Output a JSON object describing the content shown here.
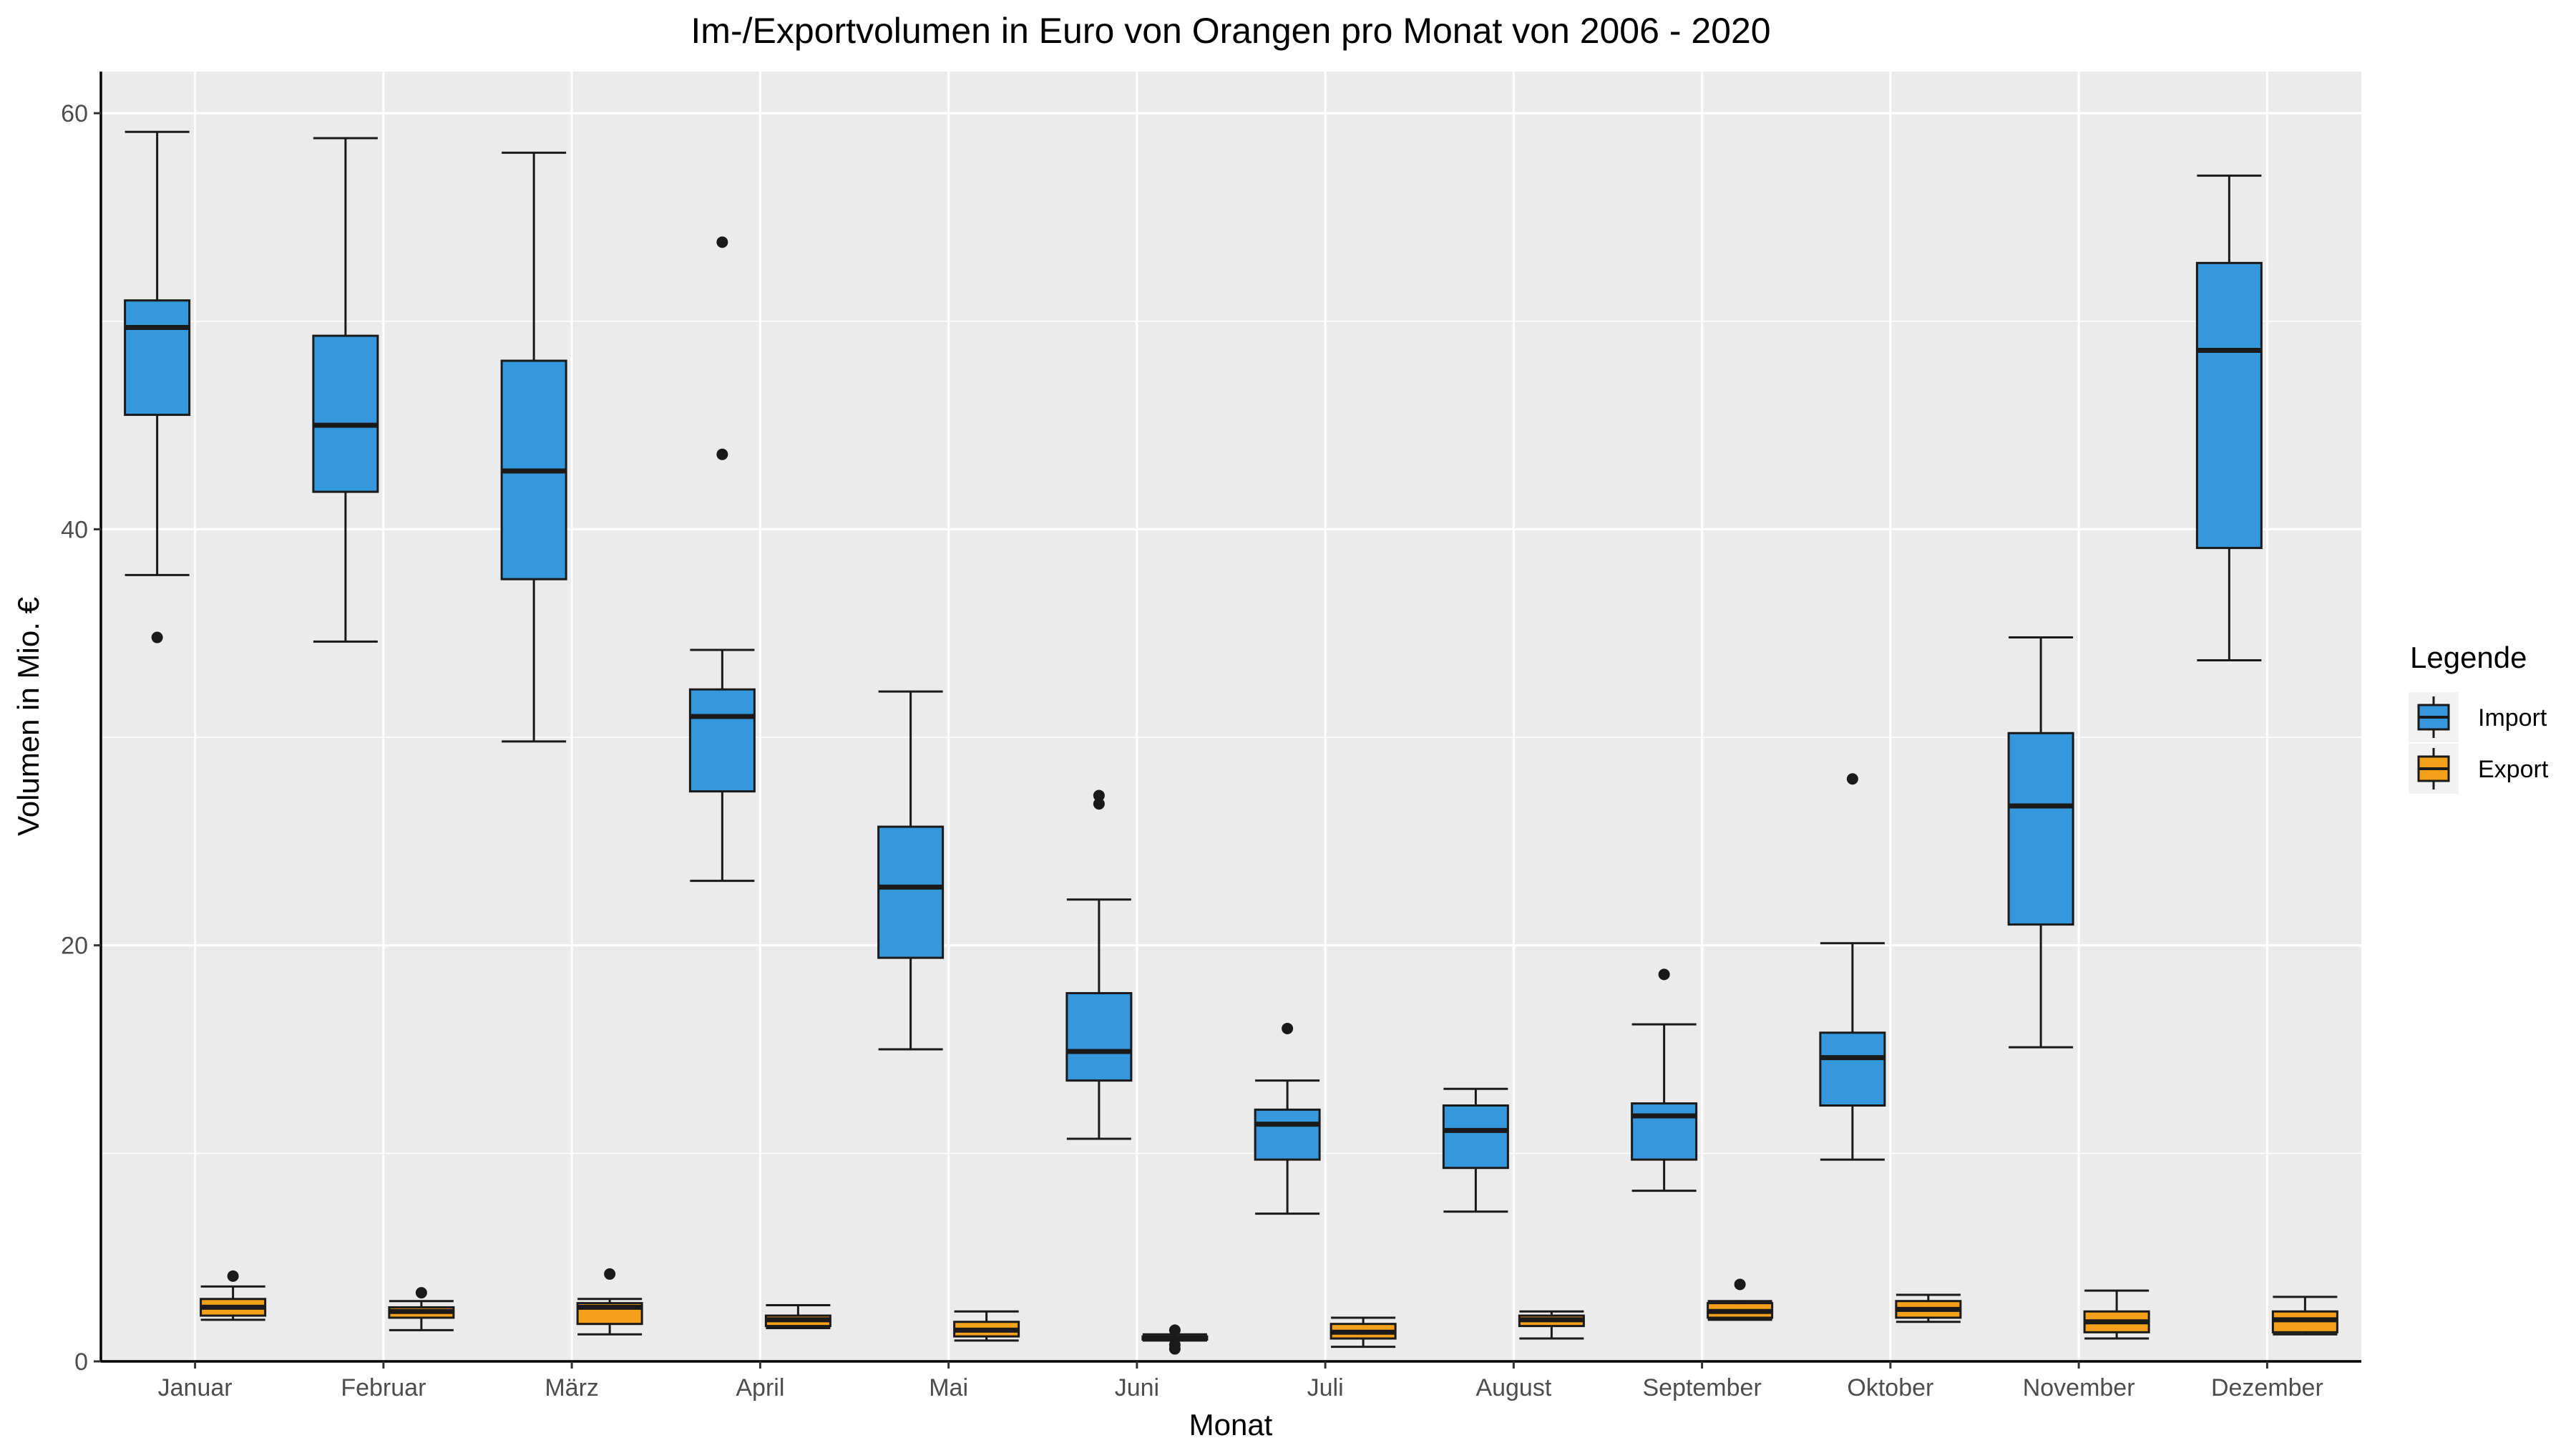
{
  "chart_data": {
    "type": "box",
    "title": "Im-/Exportvolumen in Euro von Orangen pro Monat von 2006 - 2020",
    "xlabel": "Monat",
    "ylabel": "Volumen in Mio. €",
    "ylim": [
      0,
      62
    ],
    "yticks": [
      0,
      20,
      40,
      60
    ],
    "grid": true,
    "legend_position": "right",
    "categories": [
      "Januar",
      "Februar",
      "März",
      "April",
      "Mai",
      "Juni",
      "Juli",
      "August",
      "September",
      "Oktober",
      "November",
      "Dezember"
    ],
    "legend": {
      "title": "Legende",
      "items": [
        {
          "label": "Import",
          "color": "#3598dc"
        },
        {
          "label": "Export",
          "color": "#f5a01a"
        }
      ]
    },
    "series": [
      {
        "name": "Import",
        "color": "#3598dc",
        "boxes": [
          {
            "whisker_low": 37.8,
            "q1": 45.5,
            "median": 49.7,
            "q3": 51.0,
            "whisker_high": 59.1,
            "outliers": [
              34.8
            ]
          },
          {
            "whisker_low": 34.6,
            "q1": 41.8,
            "median": 45.0,
            "q3": 49.3,
            "whisker_high": 58.8,
            "outliers": []
          },
          {
            "whisker_low": 29.8,
            "q1": 37.6,
            "median": 42.8,
            "q3": 48.1,
            "whisker_high": 58.1,
            "outliers": []
          },
          {
            "whisker_low": 23.1,
            "q1": 27.4,
            "median": 31.0,
            "q3": 32.3,
            "whisker_high": 34.2,
            "outliers": [
              43.6,
              53.8
            ]
          },
          {
            "whisker_low": 15.0,
            "q1": 19.4,
            "median": 22.8,
            "q3": 25.7,
            "whisker_high": 32.2,
            "outliers": []
          },
          {
            "whisker_low": 10.7,
            "q1": 13.5,
            "median": 14.9,
            "q3": 17.7,
            "whisker_high": 22.2,
            "outliers": [
              26.8,
              27.2
            ]
          },
          {
            "whisker_low": 7.1,
            "q1": 9.7,
            "median": 11.4,
            "q3": 12.1,
            "whisker_high": 13.5,
            "outliers": [
              16.0
            ]
          },
          {
            "whisker_low": 7.2,
            "q1": 9.3,
            "median": 11.1,
            "q3": 12.3,
            "whisker_high": 13.1,
            "outliers": []
          },
          {
            "whisker_low": 8.2,
            "q1": 9.7,
            "median": 11.8,
            "q3": 12.4,
            "whisker_high": 16.2,
            "outliers": [
              18.6
            ]
          },
          {
            "whisker_low": 9.7,
            "q1": 12.3,
            "median": 14.6,
            "q3": 15.8,
            "whisker_high": 20.1,
            "outliers": [
              28.0
            ]
          },
          {
            "whisker_low": 15.1,
            "q1": 21.0,
            "median": 26.7,
            "q3": 30.2,
            "whisker_high": 34.8,
            "outliers": []
          },
          {
            "whisker_low": 33.7,
            "q1": 39.1,
            "median": 48.6,
            "q3": 52.8,
            "whisker_high": 57.0,
            "outliers": []
          }
        ]
      },
      {
        "name": "Export",
        "color": "#f5a01a",
        "boxes": [
          {
            "whisker_low": 2.0,
            "q1": 2.2,
            "median": 2.6,
            "q3": 3.0,
            "whisker_high": 3.6,
            "outliers": [
              4.1
            ]
          },
          {
            "whisker_low": 1.5,
            "q1": 2.1,
            "median": 2.4,
            "q3": 2.6,
            "whisker_high": 2.9,
            "outliers": [
              3.3
            ]
          },
          {
            "whisker_low": 1.3,
            "q1": 1.8,
            "median": 2.6,
            "q3": 2.8,
            "whisker_high": 3.0,
            "outliers": [
              4.2
            ]
          },
          {
            "whisker_low": 1.6,
            "q1": 1.7,
            "median": 2.0,
            "q3": 2.2,
            "whisker_high": 2.7,
            "outliers": []
          },
          {
            "whisker_low": 1.0,
            "q1": 1.2,
            "median": 1.5,
            "q3": 1.9,
            "whisker_high": 2.4,
            "outliers": []
          },
          {
            "whisker_low": 1.0,
            "q1": 1.05,
            "median": 1.1,
            "q3": 1.2,
            "whisker_high": 1.3,
            "outliers": [
              0.6,
              0.8,
              1.5
            ]
          },
          {
            "whisker_low": 0.7,
            "q1": 1.1,
            "median": 1.4,
            "q3": 1.8,
            "whisker_high": 2.1,
            "outliers": []
          },
          {
            "whisker_low": 1.1,
            "q1": 1.7,
            "median": 2.0,
            "q3": 2.2,
            "whisker_high": 2.4,
            "outliers": []
          },
          {
            "whisker_low": 2.0,
            "q1": 2.1,
            "median": 2.4,
            "q3": 2.8,
            "whisker_high": 2.9,
            "outliers": [
              3.7
            ]
          },
          {
            "whisker_low": 1.9,
            "q1": 2.1,
            "median": 2.5,
            "q3": 2.9,
            "whisker_high": 3.2,
            "outliers": []
          },
          {
            "whisker_low": 1.1,
            "q1": 1.4,
            "median": 1.9,
            "q3": 2.4,
            "whisker_high": 3.4,
            "outliers": []
          },
          {
            "whisker_low": 1.3,
            "q1": 1.4,
            "median": 2.0,
            "q3": 2.4,
            "whisker_high": 3.1,
            "outliers": []
          }
        ]
      }
    ]
  }
}
